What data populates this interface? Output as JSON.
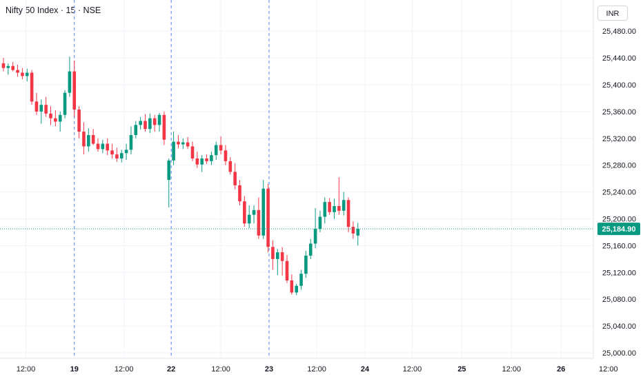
{
  "header": {
    "title": "Nifty 50 Index · 15 · NSE",
    "currency_label": "INR"
  },
  "chart_data": {
    "type": "candlestick",
    "title": "Nifty 50 Index · 15 · NSE",
    "xlabel": "",
    "ylabel": "",
    "ylim": [
      24995,
      25505
    ],
    "grid": true,
    "colors": {
      "up": "#089981",
      "down": "#f23645",
      "last_price_line": "#089981",
      "session_break": "#2962ff",
      "grid": "#f0f3fa"
    },
    "y_ticks": [
      "25,480.00",
      "25,440.00",
      "25,400.00",
      "25,360.00",
      "25,320.00",
      "25,280.00",
      "25,240.00",
      "25,200.00",
      "25,160.00",
      "25,120.00",
      "25,080.00",
      "25,040.00",
      "25,000.00"
    ],
    "y_tick_values": [
      25480,
      25440,
      25400,
      25360,
      25320,
      25280,
      25240,
      25200,
      25160,
      25120,
      25080,
      25040,
      25000
    ],
    "x_ticks": [
      {
        "label": "12:00",
        "slot": 4.75,
        "day": false
      },
      {
        "label": "19",
        "slot": 15,
        "day": true
      },
      {
        "label": "12:00",
        "slot": 25.5,
        "day": false
      },
      {
        "label": "22",
        "slot": 35.5,
        "day": true
      },
      {
        "label": "12:00",
        "slot": 46,
        "day": false
      },
      {
        "label": "23",
        "slot": 56.2,
        "day": true
      },
      {
        "label": "12:00",
        "slot": 66.3,
        "day": false
      },
      {
        "label": "24",
        "slot": 76.5,
        "day": true
      },
      {
        "label": "12:00",
        "slot": 86.5,
        "day": false
      },
      {
        "label": "25",
        "slot": 97,
        "day": true
      },
      {
        "label": "12:00",
        "slot": 107.5,
        "day": false
      },
      {
        "label": "26",
        "slot": 118,
        "day": true
      },
      {
        "label": "12:00",
        "slot": 128,
        "day": false
      }
    ],
    "session_breaks": [
      15,
      35.5,
      56.2
    ],
    "last_price": 25184.9,
    "last_price_label": "25,184.90",
    "candles": [
      [
        25432,
        25440,
        25420,
        25425
      ],
      [
        25425,
        25432,
        25415,
        25428
      ],
      [
        25428,
        25434,
        25420,
        25422
      ],
      [
        25422,
        25430,
        25412,
        25418
      ],
      [
        25418,
        25425,
        25408,
        25413
      ],
      [
        25413,
        25424,
        25405,
        25418
      ],
      [
        25418,
        25422,
        25370,
        25375
      ],
      [
        25375,
        25388,
        25355,
        25360
      ],
      [
        25360,
        25378,
        25342,
        25370
      ],
      [
        25370,
        25382,
        25352,
        25357
      ],
      [
        25357,
        25368,
        25340,
        25350
      ],
      [
        25350,
        25362,
        25338,
        25345
      ],
      [
        25345,
        25360,
        25330,
        25355
      ],
      [
        25355,
        25392,
        25350,
        25388
      ],
      [
        25388,
        25442,
        25382,
        25420
      ],
      [
        25420,
        25436,
        25352,
        25363
      ],
      [
        25363,
        25368,
        25320,
        25330
      ],
      [
        25330,
        25344,
        25296,
        25308
      ],
      [
        25308,
        25335,
        25300,
        25325
      ],
      [
        25325,
        25334,
        25310,
        25312
      ],
      [
        25312,
        25320,
        25300,
        25304
      ],
      [
        25304,
        25318,
        25298,
        25312
      ],
      [
        25312,
        25320,
        25295,
        25302
      ],
      [
        25302,
        25312,
        25290,
        25296
      ],
      [
        25296,
        25306,
        25285,
        25290
      ],
      [
        25290,
        25303,
        25284,
        25298
      ],
      [
        25298,
        25312,
        25288,
        25303
      ],
      [
        25303,
        25338,
        25296,
        25325
      ],
      [
        25325,
        25346,
        25320,
        25340
      ],
      [
        25340,
        25352,
        25333,
        25346
      ],
      [
        25346,
        25356,
        25330,
        25334
      ],
      [
        25334,
        25357,
        25328,
        25350
      ],
      [
        25350,
        25355,
        25330,
        25340
      ],
      [
        25340,
        25358,
        25330,
        25355
      ],
      [
        25355,
        25360,
        25310,
        25318
      ],
      [
        25258,
        25290,
        25217,
        25287
      ],
      [
        25287,
        25330,
        25280,
        25315
      ],
      [
        25315,
        25325,
        25305,
        25311
      ],
      [
        25311,
        25320,
        25304,
        25314
      ],
      [
        25314,
        25322,
        25304,
        25308
      ],
      [
        25308,
        25315,
        25286,
        25290
      ],
      [
        25290,
        25300,
        25276,
        25281
      ],
      [
        25281,
        25295,
        25270,
        25290
      ],
      [
        25290,
        25296,
        25282,
        25286
      ],
      [
        25286,
        25300,
        25280,
        25295
      ],
      [
        25295,
        25315,
        25288,
        25310
      ],
      [
        25310,
        25323,
        25296,
        25302
      ],
      [
        25302,
        25310,
        25280,
        25286
      ],
      [
        25286,
        25292,
        25266,
        25270
      ],
      [
        25270,
        25283,
        25244,
        25250
      ],
      [
        25250,
        25258,
        25220,
        25226
      ],
      [
        25226,
        25234,
        25188,
        25193
      ],
      [
        25193,
        25220,
        25186,
        25206
      ],
      [
        25206,
        25220,
        25193,
        25213
      ],
      [
        25213,
        25232,
        25170,
        25175
      ],
      [
        25175,
        25258,
        25170,
        25245
      ],
      [
        25245,
        25252,
        25150,
        25158
      ],
      [
        25158,
        25168,
        25124,
        25140
      ],
      [
        25140,
        25155,
        25116,
        25150
      ],
      [
        25150,
        25158,
        25115,
        25137
      ],
      [
        25137,
        25146,
        25104,
        25108
      ],
      [
        25108,
        25117,
        25087,
        25090
      ],
      [
        25090,
        25103,
        25086,
        25100
      ],
      [
        25100,
        25124,
        25094,
        25118
      ],
      [
        25118,
        25152,
        25112,
        25145
      ],
      [
        25145,
        25170,
        25140,
        25163
      ],
      [
        25163,
        25216,
        25156,
        25185
      ],
      [
        25185,
        25212,
        25180,
        25203
      ],
      [
        25203,
        25232,
        25193,
        25225
      ],
      [
        25225,
        25231,
        25206,
        25210
      ],
      [
        25210,
        25230,
        25200,
        25219
      ],
      [
        25219,
        25262,
        25206,
        25212
      ],
      [
        25212,
        25240,
        25205,
        25228
      ],
      [
        25228,
        25232,
        25180,
        25188
      ],
      [
        25188,
        25196,
        25170,
        25178
      ],
      [
        25175,
        25194,
        25160,
        25185
      ]
    ]
  }
}
